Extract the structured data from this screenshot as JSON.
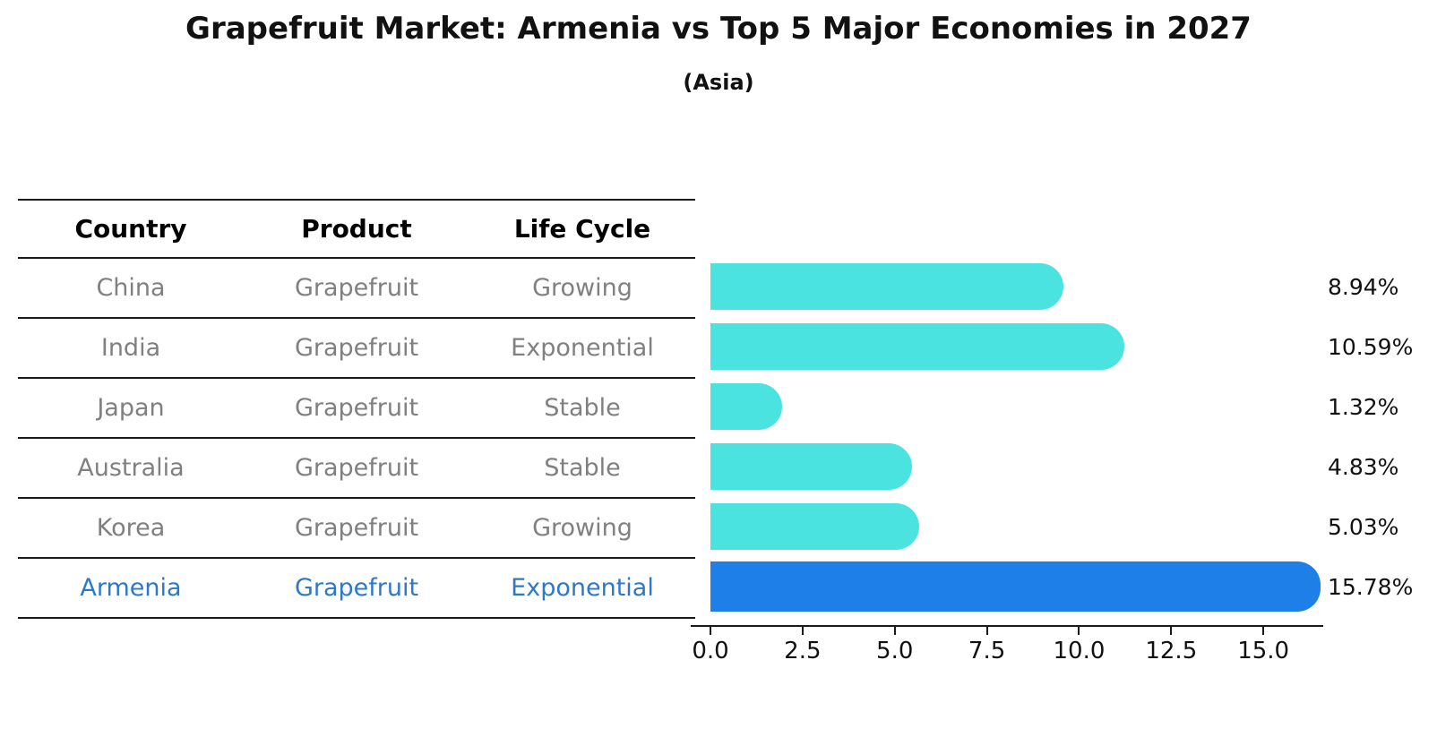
{
  "header": {
    "title": "Grapefruit Market: Armenia vs Top 5 Major Economies in 2027",
    "subtitle": "(Asia)"
  },
  "table": {
    "columns": [
      "Country",
      "Product",
      "Life Cycle"
    ],
    "rows": [
      {
        "country": "China",
        "product": "Grapefruit",
        "life_cycle": "Growing",
        "highlight": false
      },
      {
        "country": "India",
        "product": "Grapefruit",
        "life_cycle": "Exponential",
        "highlight": false
      },
      {
        "country": "Japan",
        "product": "Grapefruit",
        "life_cycle": "Stable",
        "highlight": false
      },
      {
        "country": "Australia",
        "product": "Grapefruit",
        "life_cycle": "Stable",
        "highlight": false
      },
      {
        "country": "Korea",
        "product": "Grapefruit",
        "life_cycle": "Growing",
        "highlight": false
      },
      {
        "country": "Armenia",
        "product": "Grapefruit",
        "life_cycle": "Exponential",
        "highlight": true
      }
    ]
  },
  "chart_data": {
    "type": "bar",
    "orientation": "horizontal",
    "title": "Grapefruit Market: Armenia vs Top 5 Major Economies in 2027",
    "subtitle": "(Asia)",
    "categories": [
      "China",
      "India",
      "Japan",
      "Australia",
      "Korea",
      "Armenia"
    ],
    "values": [
      8.94,
      10.59,
      1.32,
      4.83,
      5.03,
      15.78
    ],
    "value_labels": [
      "8.94%",
      "10.59%",
      "1.32%",
      "4.83%",
      "5.03%",
      "15.78%"
    ],
    "xlabel": "",
    "ylabel": "",
    "xlim": [
      0,
      16.6
    ],
    "xticks": [
      "0.0",
      "2.5",
      "5.0",
      "7.5",
      "10.0",
      "12.5",
      "15.0"
    ],
    "xtick_values": [
      0,
      2.5,
      5,
      7.5,
      10,
      12.5,
      15
    ],
    "grid": false,
    "legend": false,
    "highlight_category": "Armenia",
    "colors": {
      "bar_default": "#4BE3DF",
      "bar_highlight": "#1E7FE8",
      "highlight_text": "#2E78C8",
      "table_text": "#808080",
      "header_text": "#000000",
      "axis": "#1a1a1a"
    }
  }
}
